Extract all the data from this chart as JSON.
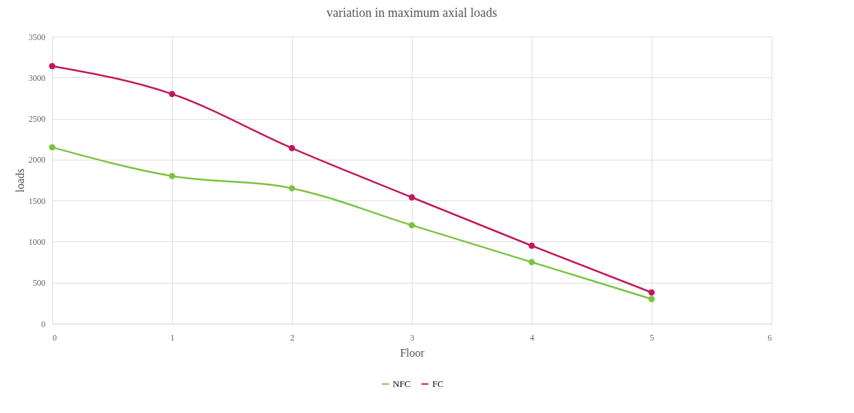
{
  "chart_data": {
    "type": "line",
    "title": "variation in maximum axial loads",
    "xlabel": "Floor",
    "ylabel": "loads",
    "x": [
      0,
      1,
      2,
      3,
      4,
      5
    ],
    "series": [
      {
        "name": "NFC",
        "color": "#7cc242",
        "values": [
          2150,
          1800,
          1650,
          1200,
          750,
          300
        ]
      },
      {
        "name": "FC",
        "color": "#c2185b",
        "values": [
          3140,
          2800,
          2140,
          1540,
          950,
          380
        ]
      }
    ],
    "xlim": [
      0,
      6
    ],
    "xticks": [
      0,
      1,
      2,
      3,
      4,
      5,
      6
    ],
    "ylim": [
      0,
      3500
    ],
    "yticks": [
      0,
      500,
      1000,
      1500,
      2000,
      2500,
      3000,
      3500
    ],
    "grid": true,
    "legend": "bottom",
    "marker": "circle",
    "line_style": "solid"
  }
}
